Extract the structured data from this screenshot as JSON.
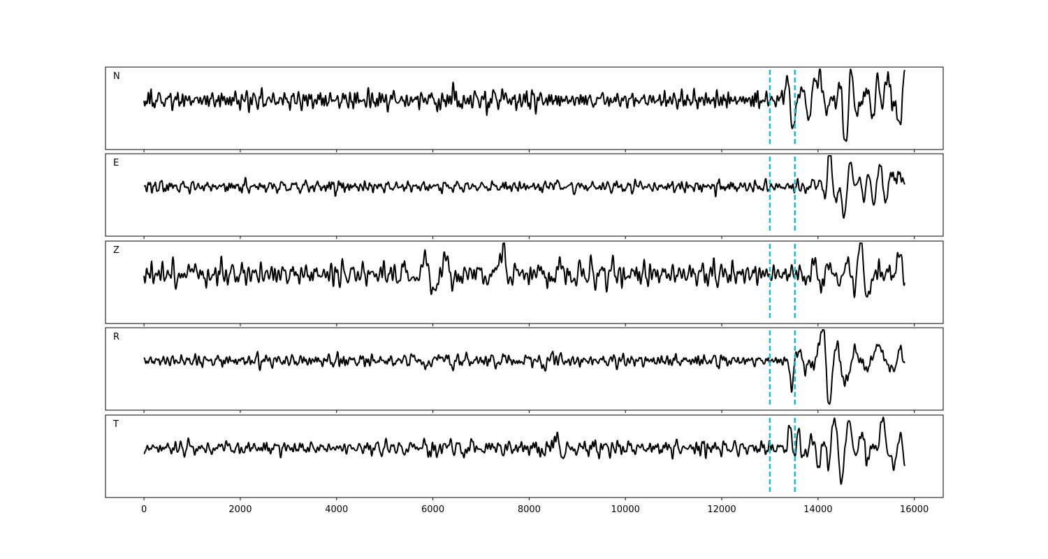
{
  "chart_data": {
    "type": "line",
    "title": "",
    "xlabel": "",
    "ylabel": "",
    "xlim": [
      -800,
      16600
    ],
    "x_ticks": [
      0,
      2000,
      4000,
      6000,
      8000,
      10000,
      12000,
      14000,
      16000
    ],
    "x_tick_labels": [
      "0",
      "2000",
      "4000",
      "6000",
      "8000",
      "10000",
      "12000",
      "14000",
      "16000"
    ],
    "trace_x_range": [
      0,
      15800
    ],
    "markers_x": [
      13000,
      13520
    ],
    "marker_color": "#17becf",
    "trace_color": "#000000",
    "grid": false,
    "panels": [
      {
        "label": "N",
        "noise_amp": 0.16,
        "seed": 11,
        "bursts": [
          [
            6000,
            700,
            0.22
          ],
          [
            7450,
            250,
            0.3
          ],
          [
            9600,
            400,
            0.12
          ]
        ],
        "tail_amp": 0.52,
        "tail_start": 13300,
        "events": [
          [
            13350,
            0.55,
            55
          ],
          [
            13460,
            -0.85,
            40
          ],
          [
            14000,
            0.55,
            80
          ],
          [
            14550,
            -0.35,
            90
          ],
          [
            15400,
            0.45,
            90
          ],
          [
            15650,
            -0.25,
            90
          ]
        ]
      },
      {
        "label": "E",
        "noise_amp": 0.1,
        "seed": 23,
        "bursts": [
          [
            8600,
            250,
            0.12
          ],
          [
            10200,
            400,
            0.08
          ]
        ],
        "tail_amp": 0.4,
        "tail_start": 13600,
        "events": [
          [
            14230,
            0.85,
            70
          ],
          [
            14330,
            -0.55,
            60
          ],
          [
            14550,
            -0.45,
            70
          ],
          [
            14700,
            0.4,
            80
          ],
          [
            15500,
            0.3,
            90
          ],
          [
            15800,
            0.25,
            60
          ]
        ]
      },
      {
        "label": "Z",
        "noise_amp": 0.2,
        "seed": 37,
        "bursts": [
          [
            1100,
            400,
            0.4
          ],
          [
            6100,
            800,
            0.35
          ],
          [
            7500,
            350,
            0.45
          ],
          [
            8500,
            600,
            0.2
          ],
          [
            9900,
            300,
            0.25
          ]
        ],
        "tail_amp": 0.32,
        "tail_start": 13300,
        "events": [
          [
            7480,
            0.85,
            50
          ],
          [
            14880,
            0.6,
            70
          ],
          [
            15020,
            -0.55,
            70
          ],
          [
            15650,
            0.35,
            80
          ]
        ]
      },
      {
        "label": "R",
        "noise_amp": 0.12,
        "seed": 53,
        "bursts": [
          [
            6000,
            600,
            0.18
          ],
          [
            7450,
            250,
            0.25
          ],
          [
            8500,
            500,
            0.12
          ]
        ],
        "tail_amp": 0.55,
        "tail_start": 13300,
        "events": [
          [
            13450,
            -0.55,
            45
          ],
          [
            14100,
            0.75,
            70
          ],
          [
            14220,
            -0.85,
            60
          ],
          [
            14550,
            -0.4,
            80
          ],
          [
            15350,
            0.5,
            90
          ],
          [
            15500,
            -0.4,
            80
          ]
        ]
      },
      {
        "label": "T",
        "noise_amp": 0.13,
        "seed": 71,
        "bursts": [
          [
            1500,
            500,
            0.15
          ],
          [
            6500,
            900,
            0.15
          ],
          [
            8600,
            400,
            0.22
          ]
        ],
        "tail_amp": 0.55,
        "tail_start": 13300,
        "events": [
          [
            13430,
            0.55,
            50
          ],
          [
            14150,
            -0.6,
            70
          ],
          [
            14280,
            0.75,
            70
          ],
          [
            14500,
            -0.65,
            70
          ],
          [
            14650,
            0.7,
            70
          ],
          [
            15350,
            0.45,
            90
          ],
          [
            15600,
            -0.35,
            80
          ]
        ]
      }
    ]
  }
}
